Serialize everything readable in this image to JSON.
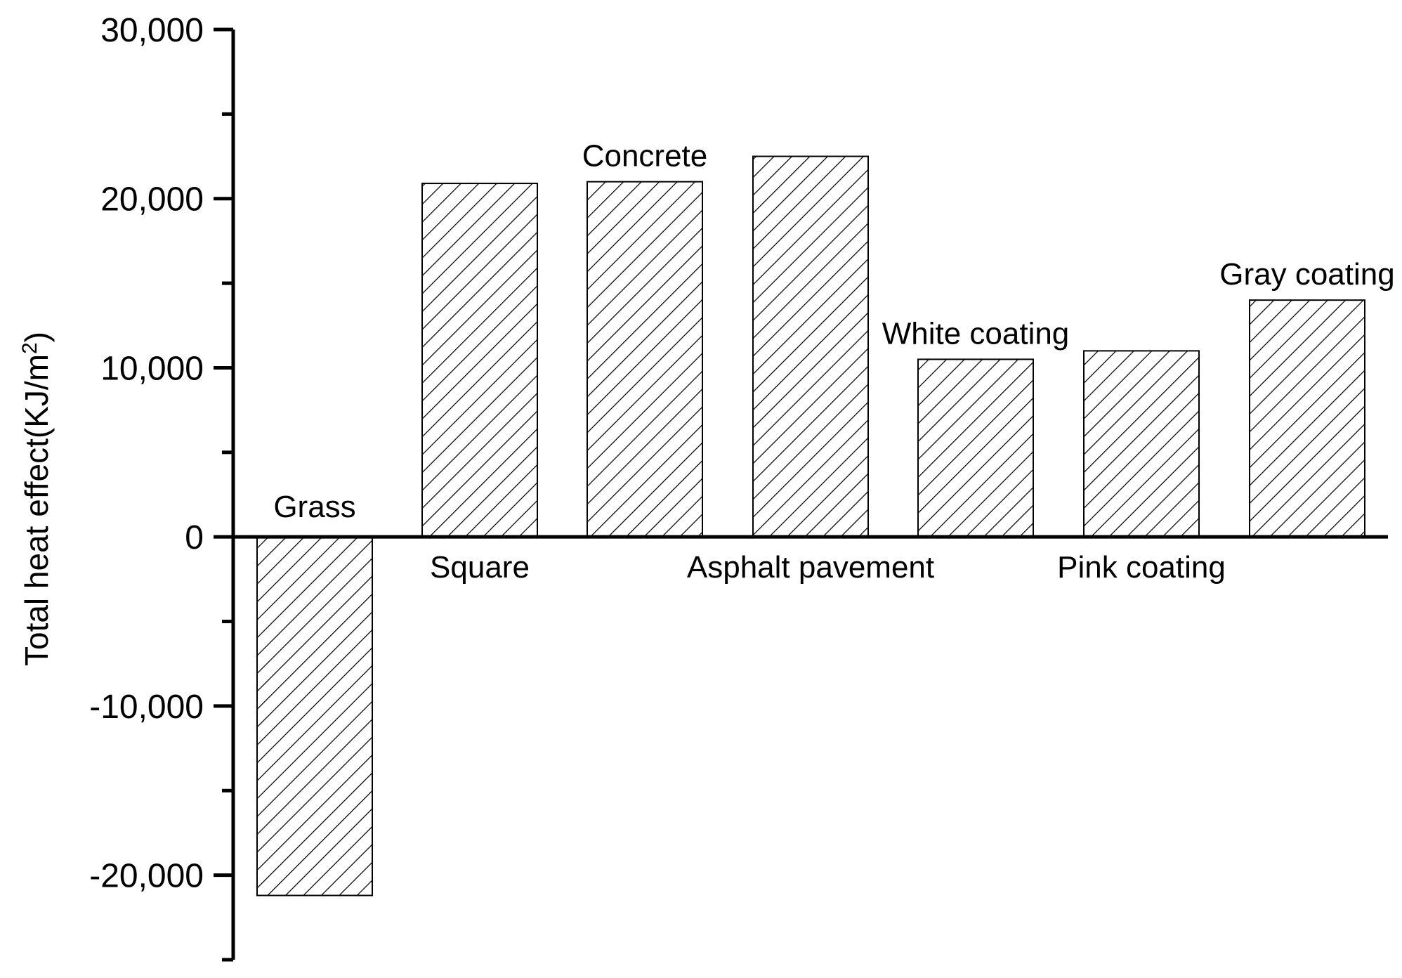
{
  "chart_data": {
    "type": "bar",
    "categories": [
      "Grass",
      "Square",
      "Concrete",
      "Asphalt pavement",
      "White coating",
      "Pink coating",
      "Gray coating"
    ],
    "values": [
      -21200,
      20900,
      21000,
      22500,
      10500,
      11000,
      14000
    ],
    "ylabel": "Total heat effect(KJ/m2)",
    "ylabel_main": "Total heat effect(KJ/m",
    "ylabel_sup": "2",
    "ylabel_close": ")",
    "ylim": [
      -25000,
      30000
    ],
    "yticks": [
      -20000,
      -10000,
      0,
      10000,
      20000,
      30000
    ],
    "ytick_labels": [
      "-20,000",
      "-10,000",
      "0",
      "10,000",
      "20,000",
      "30,000"
    ],
    "bar_fill": "hatched",
    "grid": false,
    "legend": "none"
  }
}
